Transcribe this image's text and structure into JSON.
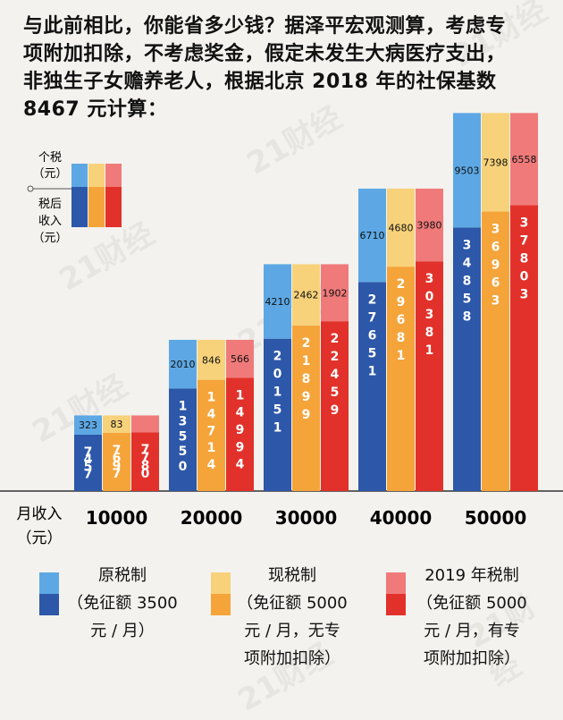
{
  "intro": [
    "与此前相比，你能省多少钱？据泽平宏观测算，考虑专",
    "项附加扣除，不考虑奖金，假定未发生大病医疗支出，",
    "非独生子女赡养老人，根据北京 2018 年的社保基数",
    "8467 元计算："
  ],
  "watermark": "21财经",
  "key": {
    "tax_label": [
      "个税",
      "（元）"
    ],
    "after_label": [
      "税后",
      "收入",
      "（元）"
    ]
  },
  "colors": {
    "original_top": "#5da8e4",
    "original_bottom": "#2d57a8",
    "current_top": "#f7d27a",
    "current_bottom": "#f5a43a",
    "new_top": "#f07a7a",
    "new_bottom": "#e2312a"
  },
  "chart_data": {
    "type": "bar",
    "stacked": true,
    "xlabel": [
      "月收入",
      "（元）"
    ],
    "categories": [
      "10000",
      "20000",
      "30000",
      "40000",
      "50000"
    ],
    "series": [
      {
        "name": "原税制",
        "tax": [
          323,
          2010,
          4210,
          6710,
          9503
        ],
        "after_tax": [
          7457,
          13550,
          20151,
          27651,
          34858
        ]
      },
      {
        "name": "现税制",
        "tax": [
          83,
          846,
          2462,
          4680,
          7398
        ],
        "after_tax": [
          7697,
          14714,
          21899,
          29681,
          36963
        ]
      },
      {
        "name": "2019 年税制",
        "tax": [
          566,
          1902,
          3980,
          6558
        ],
        "tax_full": [
          null,
          566,
          1902,
          3980,
          6558
        ],
        "after_tax": [
          7780,
          14994,
          22459,
          30381,
          37803
        ]
      }
    ]
  },
  "legend": [
    {
      "lines": [
        "原税制",
        "（免征额 3500",
        "元 / 月）"
      ]
    },
    {
      "lines": [
        "现税制",
        "（免征额 5000",
        "元 / 月，无专",
        "项附加扣除）"
      ]
    },
    {
      "lines": [
        "2019 年税制",
        "（免征额 5000",
        "元 / 月，有专",
        "项附加扣除）"
      ]
    }
  ]
}
